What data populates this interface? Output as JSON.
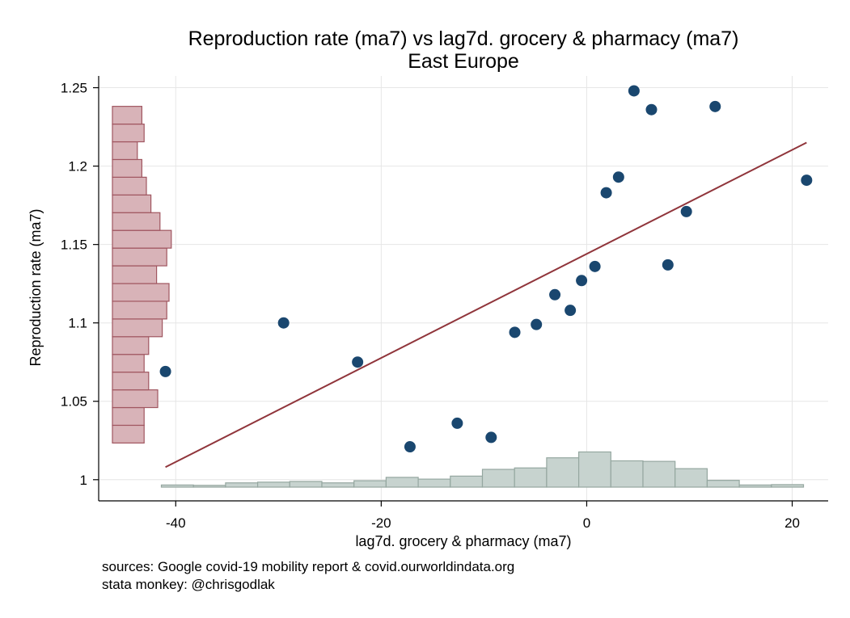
{
  "chart_data": {
    "type": "scatter",
    "title": "Reproduction rate (ma7) vs lag7d. grocery & pharmacy (ma7)",
    "subtitle": "East Europe",
    "xlabel": "lag7d. grocery & pharmacy (ma7)",
    "ylabel": "Reproduction rate (ma7)",
    "xlim": [
      -47.5,
      23.5
    ],
    "ylim": [
      0.9865,
      1.2575
    ],
    "x_ticks": [
      -40,
      -20,
      0,
      20
    ],
    "x_tick_labels": [
      "-40",
      "-20",
      "0",
      "20"
    ],
    "y_ticks": [
      1,
      1.05,
      1.1,
      1.15,
      1.2,
      1.25
    ],
    "y_tick_labels": [
      "1",
      "1.05",
      "1.1",
      "1.15",
      "1.2",
      "1.25"
    ],
    "grid": true,
    "notes": [
      "sources: Google covid-19 mobility report & covid.ourworldindata.org",
      "stata monkey: @chrisgodlak"
    ],
    "points": [
      {
        "x": -41.0,
        "y": 1.069
      },
      {
        "x": -29.5,
        "y": 1.1
      },
      {
        "x": -22.3,
        "y": 1.075
      },
      {
        "x": -17.2,
        "y": 1.021
      },
      {
        "x": -12.6,
        "y": 1.036
      },
      {
        "x": -9.3,
        "y": 1.027
      },
      {
        "x": -7.0,
        "y": 1.094
      },
      {
        "x": -4.9,
        "y": 1.099
      },
      {
        "x": -3.1,
        "y": 1.118
      },
      {
        "x": -1.6,
        "y": 1.108
      },
      {
        "x": -0.5,
        "y": 1.127
      },
      {
        "x": 0.8,
        "y": 1.136
      },
      {
        "x": 1.9,
        "y": 1.183
      },
      {
        "x": 3.1,
        "y": 1.193
      },
      {
        "x": 4.6,
        "y": 1.248
      },
      {
        "x": 6.3,
        "y": 1.236
      },
      {
        "x": 7.9,
        "y": 1.137
      },
      {
        "x": 9.7,
        "y": 1.171
      },
      {
        "x": 12.5,
        "y": 1.238
      },
      {
        "x": 21.4,
        "y": 1.191
      }
    ],
    "fit_line": {
      "x": [
        -41.0,
        21.4
      ],
      "y": [
        1.008,
        1.215
      ]
    },
    "x_histogram": {
      "bin_width": 3.125,
      "bin_start": -41.4,
      "heights": [
        0.12,
        0.1,
        0.24,
        0.28,
        0.32,
        0.24,
        0.36,
        0.55,
        0.45,
        0.62,
        1.0,
        1.08,
        1.65,
        1.98,
        1.48,
        1.45,
        1.04,
        0.38,
        0.12,
        0.14
      ]
    },
    "y_histogram": {
      "bin_width": 0.0113,
      "bin_start": 1.0234,
      "heights": [
        0.28,
        0.28,
        0.4,
        0.32,
        0.28,
        0.32,
        0.44,
        0.48,
        0.5,
        0.39,
        0.48,
        0.52,
        0.42,
        0.34,
        0.3,
        0.26,
        0.22,
        0.28,
        0.26
      ]
    },
    "colors": {
      "points": "#1a476f",
      "fit_line": "#90353b",
      "y_hist_fill": "#d8b3b8",
      "y_hist_stroke": "#a05660",
      "x_hist_fill": "#c7d3cf",
      "x_hist_stroke": "#95a7a0",
      "grid": "#e6e6e6"
    }
  }
}
